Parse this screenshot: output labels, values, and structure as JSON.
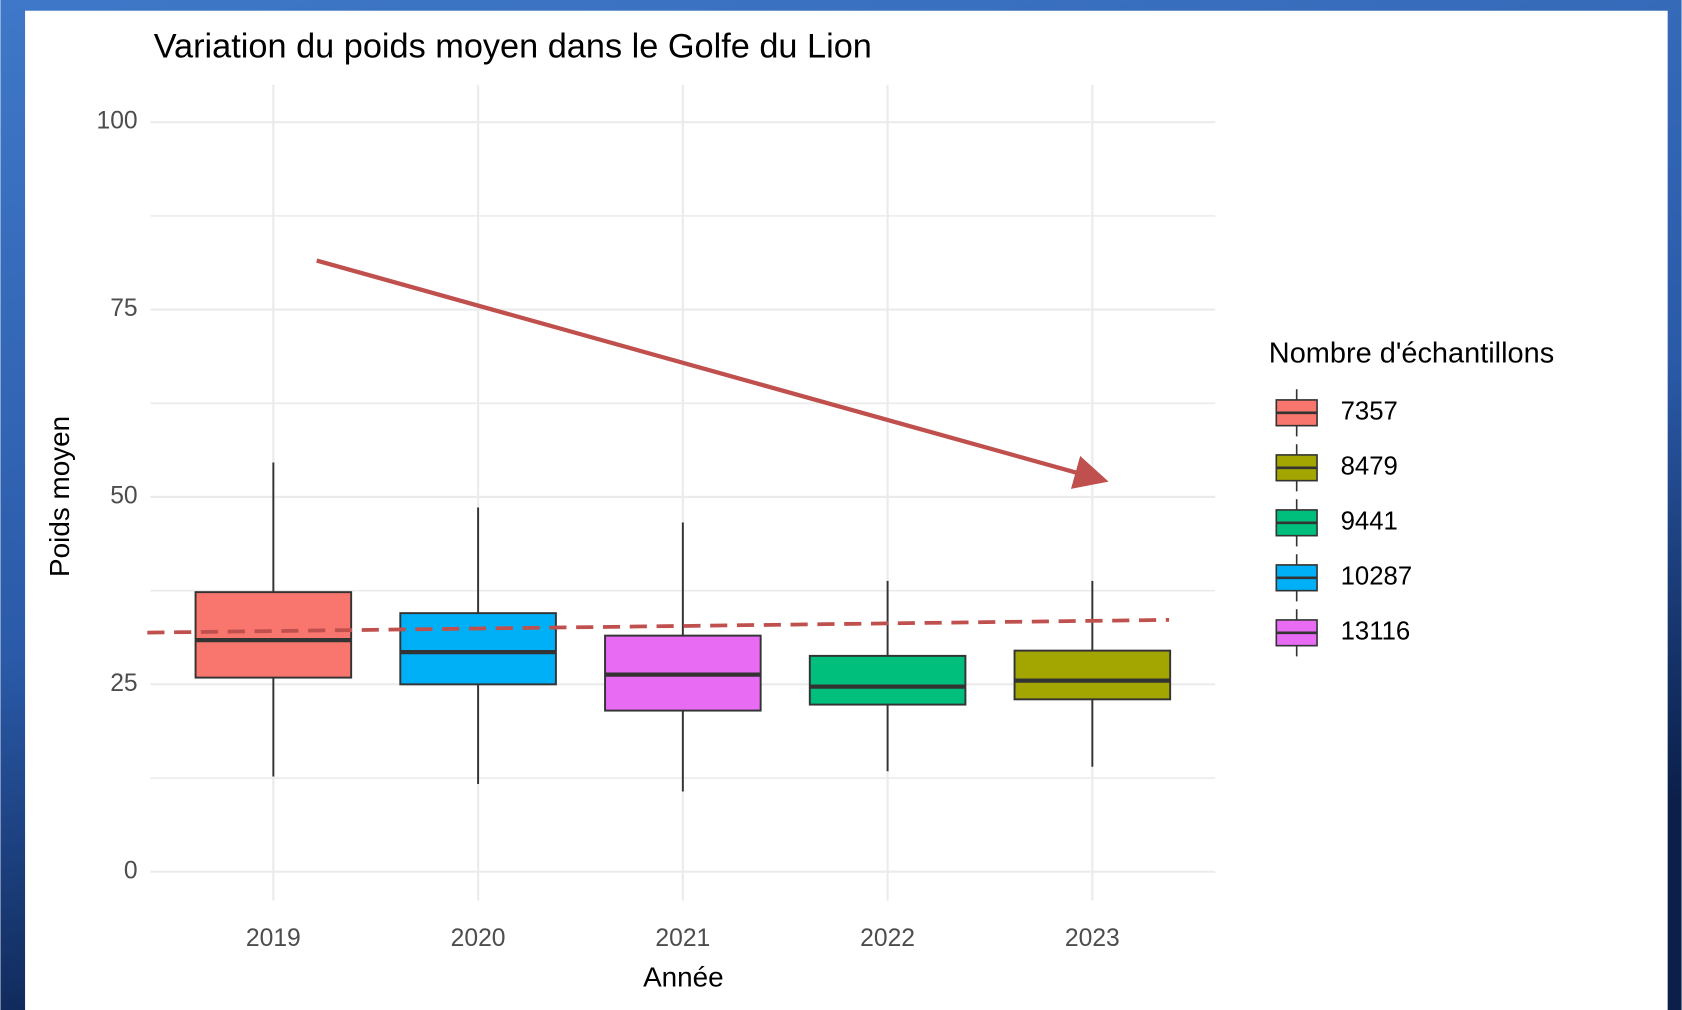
{
  "chart_data": {
    "type": "boxplot",
    "title": "Variation du poids moyen dans le Golfe du Lion",
    "x_label": "Année",
    "y_label": "Poids moyen",
    "legend_title": "Nombre d'échantillons",
    "legend_position": "right",
    "grid": true,
    "xlim": [
      2018.4,
      2023.6
    ],
    "xticks": [
      2019,
      2020,
      2021,
      2022,
      2023
    ],
    "ylim": [
      -5,
      105
    ],
    "yticks": [
      0,
      25,
      50,
      75,
      100
    ],
    "series": [
      {
        "name": "7357",
        "color": "#F8766D",
        "x": 2019,
        "values": [
          12.7,
          25.9,
          30.9,
          37.3,
          54.6
        ]
      },
      {
        "name": "8479",
        "color": "#A3A500",
        "x": 2023,
        "values": [
          14.0,
          23.0,
          25.5,
          29.5,
          38.8
        ]
      },
      {
        "name": "9441",
        "color": "#00BF7D",
        "x": 2022,
        "values": [
          13.4,
          22.3,
          24.7,
          28.8,
          38.8
        ]
      },
      {
        "name": "10287",
        "color": "#00B0F6",
        "x": 2020,
        "values": [
          11.7,
          25.0,
          29.3,
          34.5,
          48.6
        ]
      },
      {
        "name": "13116",
        "color": "#E76BF3",
        "x": 2021,
        "values": [
          10.7,
          21.5,
          26.3,
          31.5,
          46.6
        ]
      }
    ],
    "reference_line": {
      "color": "#C0504D",
      "values": [
        31.9,
        33.6
      ]
    }
  }
}
